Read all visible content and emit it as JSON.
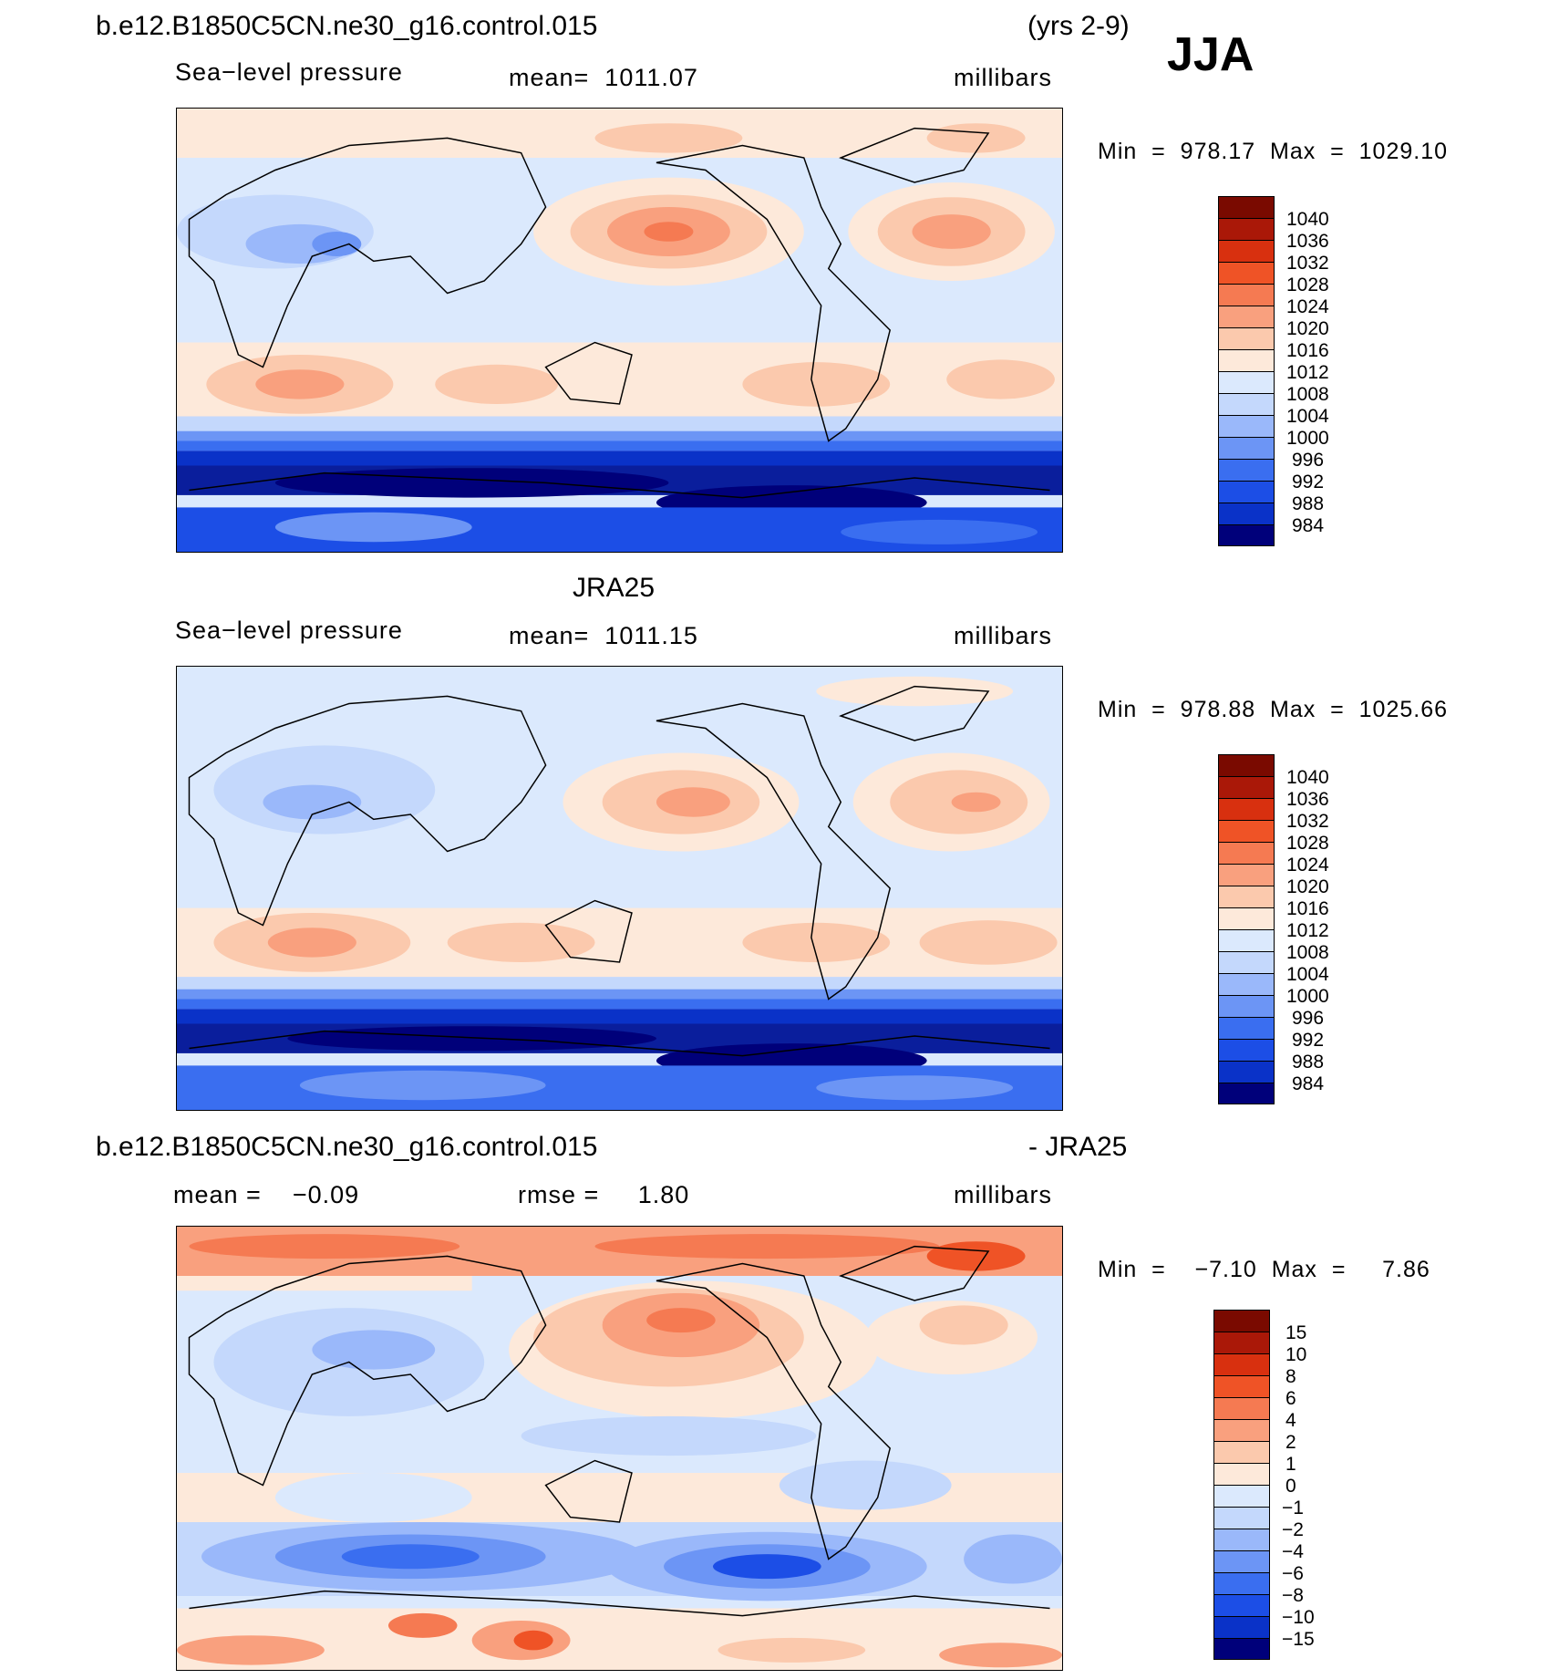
{
  "header": {
    "case_name": "b.e12.B1850C5CN.ne30_g16.control.015",
    "years": "(yrs 2-9)",
    "season": "JJA"
  },
  "panels": [
    {
      "id": "model",
      "title": "",
      "variable": "Sea−level pressure",
      "mean_text": "mean=  1011.07",
      "units": "millibars",
      "minmax": "Min  =  978.17  Max  =  1029.10",
      "colorbar_labels": [
        "1040",
        "1036",
        "1032",
        "1028",
        "1024",
        "1020",
        "1016",
        "1012",
        "1008",
        "1004",
        "1000",
        "996",
        "992",
        "988",
        "984"
      ]
    },
    {
      "id": "obs",
      "title": "JRA25",
      "variable": "Sea−level pressure",
      "mean_text": "mean=  1011.15",
      "units": "millibars",
      "minmax": "Min  =  978.88  Max  =  1025.66",
      "colorbar_labels": [
        "1040",
        "1036",
        "1032",
        "1028",
        "1024",
        "1020",
        "1016",
        "1012",
        "1008",
        "1004",
        "1000",
        "996",
        "992",
        "988",
        "984"
      ]
    },
    {
      "id": "diff",
      "title_left": "b.e12.B1850C5CN.ne30_g16.control.015",
      "title_right": "- JRA25",
      "mean_text": "mean =    −0.09",
      "rmse_text": "rmse =     1.80",
      "units": "millibars",
      "minmax": "Min  =    −7.10  Max  =     7.86",
      "colorbar_labels": [
        "15",
        "10",
        "8",
        "6",
        "4",
        "2",
        "1",
        "0",
        "−1",
        "−2",
        "−4",
        "−6",
        "−8",
        "−10",
        "−15"
      ]
    }
  ],
  "colors": {
    "slp_scale": [
      "#00007a",
      "#0a1e9c",
      "#0a32c8",
      "#1c4ee6",
      "#3a6ef0",
      "#6c95f5",
      "#9ab8fa",
      "#c4d8fc",
      "#dbe9fd",
      "#fde9da",
      "#fbc9ad",
      "#f9a07e",
      "#f57a52",
      "#ef5326",
      "#d8300f",
      "#aa1808"
    ],
    "diff_scale": [
      "#00007a",
      "#0a1e9c",
      "#0a32c8",
      "#1c4ee6",
      "#3a6ef0",
      "#6c95f5",
      "#9ab8fa",
      "#dbe9fd",
      "#fde9da",
      "#fbc9ad",
      "#f9a07e",
      "#f57a52",
      "#ef5326",
      "#d8300f",
      "#aa1808",
      "#7a0a00"
    ],
    "coastline": "#000000"
  }
}
